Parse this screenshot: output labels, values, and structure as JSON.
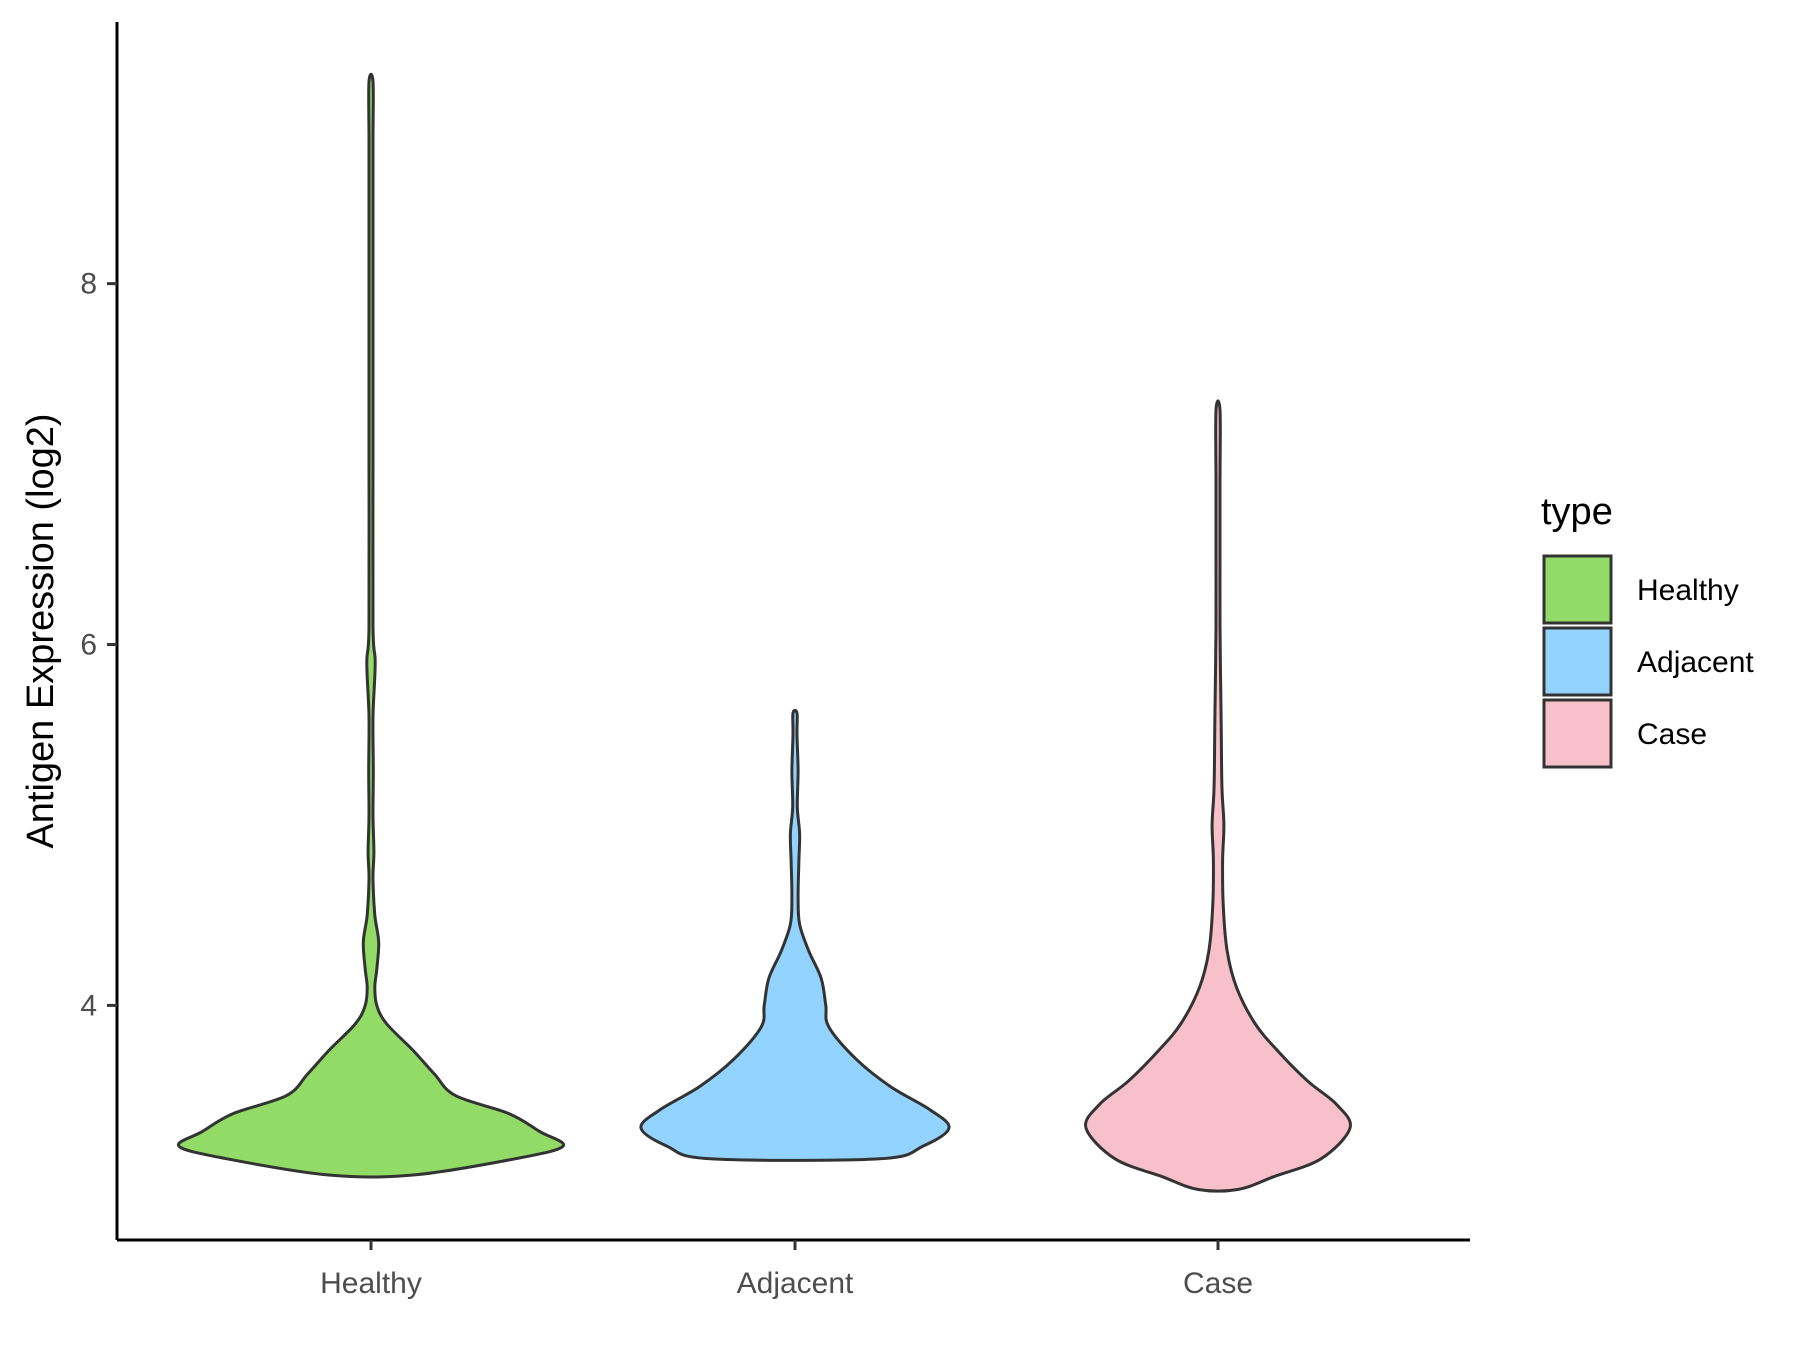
{
  "chart_data": {
    "type": "violin",
    "title": "",
    "xlabel": "",
    "ylabel": "Antigen Expression (log2)",
    "categories": [
      "Healthy",
      "Adjacent",
      "Case"
    ],
    "y_ticks": [
      4,
      6,
      8
    ],
    "y_tick_labels": [
      "4",
      "6",
      "8"
    ],
    "ylim": [
      2.7,
      9.45
    ],
    "legend": {
      "title": "type",
      "position": "right",
      "items": [
        {
          "label": "Healthy",
          "color": "#92db67"
        },
        {
          "label": "Adjacent",
          "color": "#93d3ff"
        },
        {
          "label": "Case",
          "color": "#f7c0cb"
        }
      ]
    },
    "series": [
      {
        "category": "Healthy",
        "color": "#92db67",
        "min": 3.06,
        "max": 9.12,
        "density": [
          [
            3.06,
            0.22
          ],
          [
            3.15,
            0.75
          ],
          [
            3.22,
            1.0
          ],
          [
            3.3,
            0.88
          ],
          [
            3.4,
            0.72
          ],
          [
            3.5,
            0.44
          ],
          [
            3.62,
            0.33
          ],
          [
            3.75,
            0.22
          ],
          [
            3.9,
            0.08
          ],
          [
            4.0,
            0.03
          ],
          [
            4.1,
            0.02
          ],
          [
            4.2,
            0.03
          ],
          [
            4.35,
            0.04
          ],
          [
            4.5,
            0.02
          ],
          [
            4.7,
            0.01
          ],
          [
            4.85,
            0.015
          ],
          [
            5.05,
            0.008
          ],
          [
            5.3,
            0.012
          ],
          [
            5.6,
            0.006
          ],
          [
            5.9,
            0.022
          ],
          [
            6.1,
            0.004
          ],
          [
            7.0,
            0.003
          ],
          [
            8.0,
            0.004
          ],
          [
            8.2,
            0.008
          ],
          [
            8.4,
            0.004
          ],
          [
            8.8,
            0.004
          ],
          [
            9.12,
            0.006
          ]
        ]
      },
      {
        "category": "Adjacent",
        "color": "#93d3ff",
        "min": 3.15,
        "max": 5.62,
        "density": [
          [
            3.15,
            0.55
          ],
          [
            3.22,
            0.83
          ],
          [
            3.32,
            1.0
          ],
          [
            3.42,
            0.88
          ],
          [
            3.55,
            0.62
          ],
          [
            3.7,
            0.4
          ],
          [
            3.88,
            0.22
          ],
          [
            4.0,
            0.2
          ],
          [
            4.15,
            0.17
          ],
          [
            4.3,
            0.09
          ],
          [
            4.45,
            0.03
          ],
          [
            4.6,
            0.02
          ],
          [
            4.8,
            0.025
          ],
          [
            4.95,
            0.03
          ],
          [
            5.1,
            0.015
          ],
          [
            5.3,
            0.02
          ],
          [
            5.5,
            0.01
          ],
          [
            5.62,
            0.012
          ]
        ]
      },
      {
        "category": "Case",
        "color": "#f7c0cb",
        "min": 2.98,
        "max": 7.3,
        "density": [
          [
            2.98,
            0.15
          ],
          [
            3.05,
            0.42
          ],
          [
            3.15,
            0.78
          ],
          [
            3.32,
            1.0
          ],
          [
            3.45,
            0.9
          ],
          [
            3.58,
            0.68
          ],
          [
            3.75,
            0.45
          ],
          [
            3.9,
            0.28
          ],
          [
            4.1,
            0.14
          ],
          [
            4.3,
            0.07
          ],
          [
            4.55,
            0.04
          ],
          [
            4.8,
            0.035
          ],
          [
            5.0,
            0.045
          ],
          [
            5.2,
            0.03
          ],
          [
            5.5,
            0.025
          ],
          [
            5.8,
            0.02
          ],
          [
            6.1,
            0.012
          ],
          [
            6.5,
            0.01
          ],
          [
            6.9,
            0.008
          ],
          [
            7.3,
            0.01
          ]
        ]
      }
    ]
  }
}
